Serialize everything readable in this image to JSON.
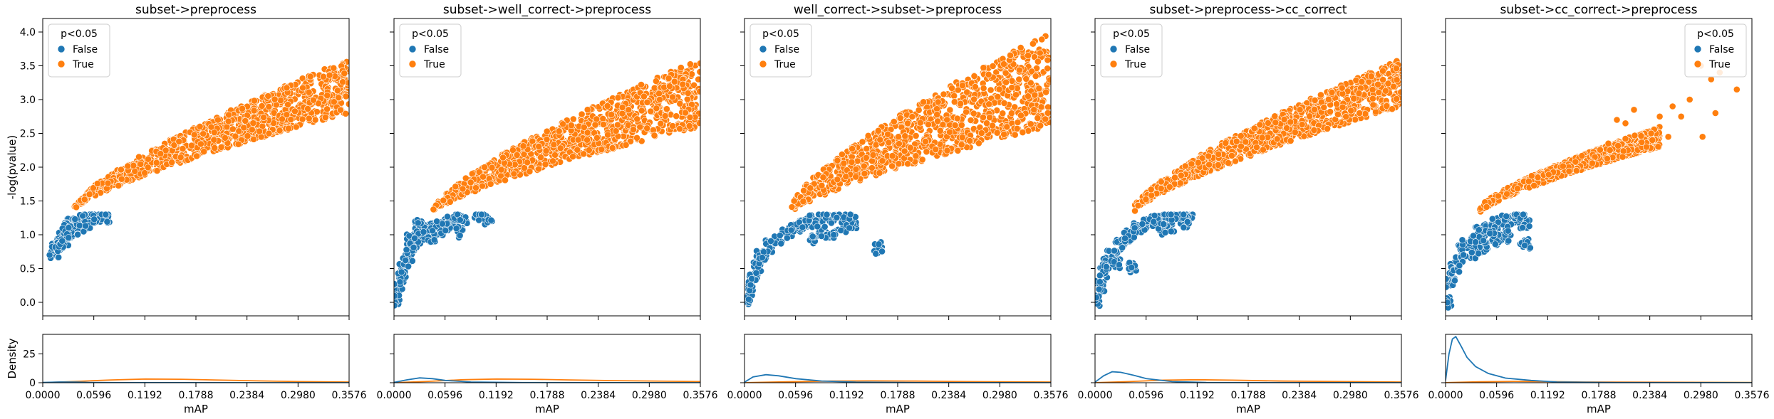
{
  "chart_data": {
    "type": "scatter",
    "shared": {
      "xlabel": "mAP",
      "ylabel_top": "-log(pvalue)",
      "ylabel_bottom": "Density",
      "xlim": [
        0,
        0.3576
      ],
      "ylim_top": [
        -0.2,
        4.2
      ],
      "ylim_bottom": [
        0,
        42
      ],
      "xticks": [
        "0.0000",
        "0.0596",
        "0.1192",
        "0.1788",
        "0.2384",
        "0.2980",
        "0.3576"
      ],
      "xtick_values": [
        0,
        0.0596,
        0.1192,
        0.1788,
        0.2384,
        0.298,
        0.3576
      ],
      "yticks_top": [
        "0.0",
        "0.5",
        "1.0",
        "1.5",
        "2.0",
        "2.5",
        "3.0",
        "3.5",
        "4.0"
      ],
      "ytick_values_top": [
        0,
        0.5,
        1,
        1.5,
        2,
        2.5,
        3,
        3.5,
        4
      ],
      "yticks_bottom": [
        "0",
        "25"
      ],
      "ytick_values_bottom": [
        0,
        25
      ],
      "legend_title": "p<0.05",
      "legend_entries": [
        "False",
        "True"
      ],
      "colors": {
        "False": "#1f77b4",
        "True": "#ff7f0e"
      },
      "grid": false
    },
    "panels": [
      {
        "title": "subset->preprocess",
        "legend_position": "top-left",
        "scatter_false": [
          [
            0.013,
            0.75
          ],
          [
            0.016,
            0.82
          ],
          [
            0.019,
            0.9
          ],
          [
            0.022,
            0.97
          ],
          [
            0.025,
            1.03
          ],
          [
            0.028,
            1.08
          ],
          [
            0.031,
            1.13
          ],
          [
            0.034,
            1.17
          ],
          [
            0.037,
            1.2
          ],
          [
            0.041,
            1.23
          ],
          [
            0.045,
            1.25
          ],
          [
            0.05,
            1.27
          ],
          [
            0.055,
            1.28
          ],
          [
            0.06,
            1.29
          ],
          [
            0.068,
            1.3
          ],
          [
            0.072,
            1.28
          ],
          [
            0.024,
            0.95
          ],
          [
            0.03,
            1.05
          ],
          [
            0.036,
            1.1
          ],
          [
            0.046,
            1.15
          ],
          [
            0.052,
            1.2
          ]
        ],
        "scatter_true_band": {
          "x_range": [
            0.035,
            0.3576
          ],
          "y_at_start": [
            1.35,
            1.4
          ],
          "y_at_end": [
            2.8,
            3.6
          ]
        },
        "density_false": [
          [
            0,
            0.2
          ],
          [
            0.02,
            0.6
          ],
          [
            0.04,
            0.5
          ],
          [
            0.06,
            0.2
          ],
          [
            0.1,
            0.05
          ],
          [
            0.3576,
            0
          ]
        ],
        "density_true": [
          [
            0,
            0.05
          ],
          [
            0.04,
            1.2
          ],
          [
            0.08,
            2.4
          ],
          [
            0.12,
            3.2
          ],
          [
            0.16,
            3.0
          ],
          [
            0.2,
            2.4
          ],
          [
            0.25,
            1.6
          ],
          [
            0.3,
            1.0
          ],
          [
            0.3576,
            0.6
          ]
        ]
      },
      {
        "title": "subset->well_correct->preprocess",
        "legend_position": "top-left",
        "scatter_false": [
          [
            0.001,
            0.05
          ],
          [
            0.004,
            0.2
          ],
          [
            0.008,
            0.4
          ],
          [
            0.012,
            0.55
          ],
          [
            0.016,
            0.7
          ],
          [
            0.02,
            0.8
          ],
          [
            0.025,
            0.9
          ],
          [
            0.03,
            0.98
          ],
          [
            0.035,
            1.05
          ],
          [
            0.04,
            1.1
          ],
          [
            0.05,
            1.17
          ],
          [
            0.06,
            1.22
          ],
          [
            0.07,
            1.25
          ],
          [
            0.08,
            1.27
          ],
          [
            0.1,
            1.28
          ],
          [
            0.11,
            1.25
          ],
          [
            0.02,
            0.95
          ],
          [
            0.03,
            1.15
          ],
          [
            0.045,
            1.0
          ],
          [
            0.055,
            1.1
          ],
          [
            0.065,
            1.15
          ],
          [
            0.075,
            1.05
          ]
        ],
        "scatter_true_band": {
          "x_range": [
            0.045,
            0.3576
          ],
          "y_at_start": [
            1.32,
            1.38
          ],
          "y_at_end": [
            2.6,
            3.6
          ]
        },
        "density_false": [
          [
            0,
            0.3
          ],
          [
            0.015,
            2.5
          ],
          [
            0.03,
            4.2
          ],
          [
            0.045,
            3.5
          ],
          [
            0.06,
            2.0
          ],
          [
            0.09,
            0.6
          ],
          [
            0.15,
            0.1
          ],
          [
            0.3576,
            0
          ]
        ],
        "density_true": [
          [
            0,
            0.05
          ],
          [
            0.04,
            1.2
          ],
          [
            0.08,
            2.6
          ],
          [
            0.12,
            3.2
          ],
          [
            0.16,
            3.0
          ],
          [
            0.2,
            2.5
          ],
          [
            0.26,
            1.8
          ],
          [
            0.3576,
            1.0
          ]
        ]
      },
      {
        "title": "well_correct->subset->preprocess",
        "legend_position": "top-left",
        "scatter_false": [
          [
            0.001,
            0.02
          ],
          [
            0.005,
            0.2
          ],
          [
            0.01,
            0.4
          ],
          [
            0.015,
            0.55
          ],
          [
            0.02,
            0.7
          ],
          [
            0.03,
            0.85
          ],
          [
            0.04,
            0.95
          ],
          [
            0.05,
            1.05
          ],
          [
            0.06,
            1.12
          ],
          [
            0.07,
            1.18
          ],
          [
            0.08,
            1.22
          ],
          [
            0.09,
            1.25
          ],
          [
            0.1,
            1.27
          ],
          [
            0.11,
            1.28
          ],
          [
            0.12,
            1.28
          ],
          [
            0.155,
            0.82
          ],
          [
            0.08,
            0.95
          ],
          [
            0.09,
            1.05
          ],
          [
            0.1,
            1.0
          ],
          [
            0.115,
            1.1
          ],
          [
            0.125,
            1.2
          ]
        ],
        "scatter_true_band": {
          "x_range": [
            0.055,
            0.3576
          ],
          "y_at_start": [
            1.32,
            1.45
          ],
          "y_at_end": [
            2.6,
            4.0
          ]
        },
        "density_false": [
          [
            0,
            0.5
          ],
          [
            0.01,
            5.0
          ],
          [
            0.025,
            7.0
          ],
          [
            0.04,
            6.0
          ],
          [
            0.06,
            3.5
          ],
          [
            0.09,
            1.5
          ],
          [
            0.13,
            0.5
          ],
          [
            0.2,
            0.1
          ],
          [
            0.3576,
            0
          ]
        ],
        "density_true": [
          [
            0,
            0.05
          ],
          [
            0.05,
            0.8
          ],
          [
            0.1,
            1.4
          ],
          [
            0.15,
            1.6
          ],
          [
            0.2,
            1.4
          ],
          [
            0.26,
            1.0
          ],
          [
            0.3576,
            0.6
          ]
        ]
      },
      {
        "title": "subset->preprocess->cc_correct",
        "legend_position": "top-left",
        "scatter_false": [
          [
            0.001,
            0.05
          ],
          [
            0.005,
            0.25
          ],
          [
            0.01,
            0.45
          ],
          [
            0.015,
            0.6
          ],
          [
            0.02,
            0.72
          ],
          [
            0.03,
            0.88
          ],
          [
            0.04,
            1.0
          ],
          [
            0.05,
            1.1
          ],
          [
            0.06,
            1.17
          ],
          [
            0.07,
            1.22
          ],
          [
            0.08,
            1.26
          ],
          [
            0.09,
            1.28
          ],
          [
            0.1,
            1.3
          ],
          [
            0.11,
            1.3
          ],
          [
            0.104,
            1.2
          ],
          [
            0.08,
            1.1
          ],
          [
            0.09,
            1.15
          ],
          [
            0.045,
            0.55
          ],
          [
            0.025,
            0.6
          ]
        ],
        "scatter_true_band": {
          "x_range": [
            0.045,
            0.3576
          ],
          "y_at_start": [
            1.32,
            1.4
          ],
          "y_at_end": [
            2.9,
            3.6
          ]
        },
        "density_false": [
          [
            0,
            0.5
          ],
          [
            0.01,
            6.0
          ],
          [
            0.02,
            9.5
          ],
          [
            0.03,
            9.0
          ],
          [
            0.045,
            6.5
          ],
          [
            0.06,
            3.5
          ],
          [
            0.09,
            1.0
          ],
          [
            0.13,
            0.2
          ],
          [
            0.3576,
            0
          ]
        ],
        "density_true": [
          [
            0,
            0.05
          ],
          [
            0.04,
            1.0
          ],
          [
            0.08,
            2.2
          ],
          [
            0.12,
            2.6
          ],
          [
            0.16,
            2.2
          ],
          [
            0.22,
            1.4
          ],
          [
            0.3576,
            0.6
          ]
        ]
      },
      {
        "title": "subset->cc_correct->preprocess",
        "legend_position": "top-right",
        "scatter_false": [
          [
            0.001,
            0.02
          ],
          [
            0.005,
            0.3
          ],
          [
            0.01,
            0.5
          ],
          [
            0.015,
            0.65
          ],
          [
            0.02,
            0.78
          ],
          [
            0.025,
            0.88
          ],
          [
            0.03,
            0.95
          ],
          [
            0.04,
            1.05
          ],
          [
            0.05,
            1.12
          ],
          [
            0.06,
            1.18
          ],
          [
            0.07,
            1.22
          ],
          [
            0.08,
            1.26
          ],
          [
            0.086,
            1.28
          ],
          [
            0.093,
            1.2
          ],
          [
            0.093,
            0.9
          ],
          [
            0.06,
            0.95
          ],
          [
            0.07,
            1.0
          ],
          [
            0.045,
            0.85
          ],
          [
            0.035,
            0.75
          ]
        ],
        "scatter_true_band": {
          "x_range": [
            0.04,
            0.25
          ],
          "y_at_start": [
            1.32,
            1.4
          ],
          "y_at_end": [
            2.3,
            2.6
          ]
        },
        "scatter_true_sparse": [
          [
            0.19,
            2.35
          ],
          [
            0.2,
            2.7
          ],
          [
            0.22,
            2.85
          ],
          [
            0.21,
            2.65
          ],
          [
            0.25,
            2.75
          ],
          [
            0.24,
            2.5
          ],
          [
            0.26,
            2.45
          ],
          [
            0.265,
            2.9
          ],
          [
            0.285,
            3.0
          ],
          [
            0.3,
            2.45
          ],
          [
            0.31,
            3.3
          ],
          [
            0.298,
            3.5
          ],
          [
            0.32,
            3.4
          ],
          [
            0.34,
            3.15
          ],
          [
            0.315,
            2.8
          ],
          [
            0.275,
            2.75
          ]
        ],
        "density_false": [
          [
            0,
            2.0
          ],
          [
            0.004,
            25
          ],
          [
            0.008,
            38
          ],
          [
            0.012,
            40
          ],
          [
            0.018,
            32
          ],
          [
            0.025,
            22
          ],
          [
            0.035,
            14
          ],
          [
            0.05,
            8
          ],
          [
            0.07,
            4
          ],
          [
            0.1,
            2
          ],
          [
            0.13,
            0.6
          ],
          [
            0.2,
            0.1
          ],
          [
            0.3576,
            0
          ]
        ],
        "density_true": [
          [
            0,
            0.05
          ],
          [
            0.04,
            0.8
          ],
          [
            0.08,
            1.2
          ],
          [
            0.12,
            1.0
          ],
          [
            0.16,
            0.6
          ],
          [
            0.3576,
            0.2
          ]
        ]
      }
    ]
  }
}
